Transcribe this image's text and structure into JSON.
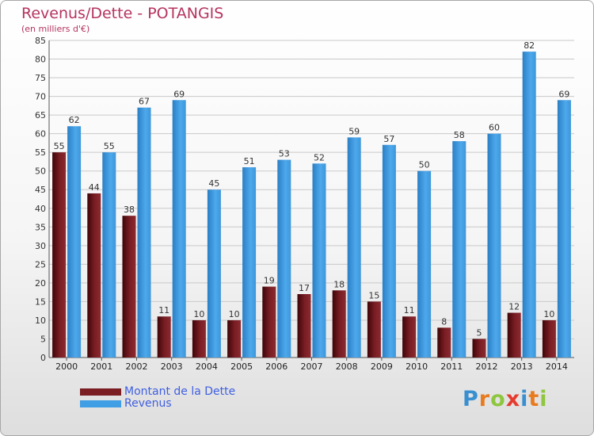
{
  "title": "Revenus/Dette - POTANGIS",
  "subtitle": "(en milliers d'€)",
  "logo": {
    "letters": [
      "P",
      "r",
      "o",
      "x",
      "i",
      "t",
      "i"
    ],
    "colors": [
      "#3a8fd1",
      "#e87b1e",
      "#8ec63f",
      "#e63b2e",
      "#3a8fd1",
      "#e87b1e",
      "#8ec63f"
    ]
  },
  "chart_data": {
    "type": "bar",
    "title": "Revenus/Dette - POTANGIS",
    "subtitle": "(en milliers d'€)",
    "categories": [
      "2000",
      "2001",
      "2002",
      "2003",
      "2004",
      "2005",
      "2006",
      "2007",
      "2008",
      "2009",
      "2010",
      "2011",
      "2012",
      "2013",
      "2014"
    ],
    "series": [
      {
        "name": "Montant de la Dette",
        "values": [
          55,
          44,
          38,
          11,
          10,
          10,
          19,
          17,
          18,
          15,
          11,
          8,
          5,
          12,
          10
        ],
        "color": "#7a1e24"
      },
      {
        "name": "Revenus",
        "values": [
          62,
          55,
          67,
          69,
          45,
          51,
          53,
          52,
          59,
          57,
          50,
          58,
          60,
          82,
          69
        ],
        "color": "#3f9ee4"
      }
    ],
    "ylim": [
      0,
      85
    ],
    "yticks": [
      0,
      5,
      10,
      15,
      20,
      25,
      30,
      35,
      40,
      45,
      50,
      55,
      60,
      65,
      70,
      75,
      80,
      85
    ],
    "grid": true,
    "legend_position": "bottom-left"
  }
}
